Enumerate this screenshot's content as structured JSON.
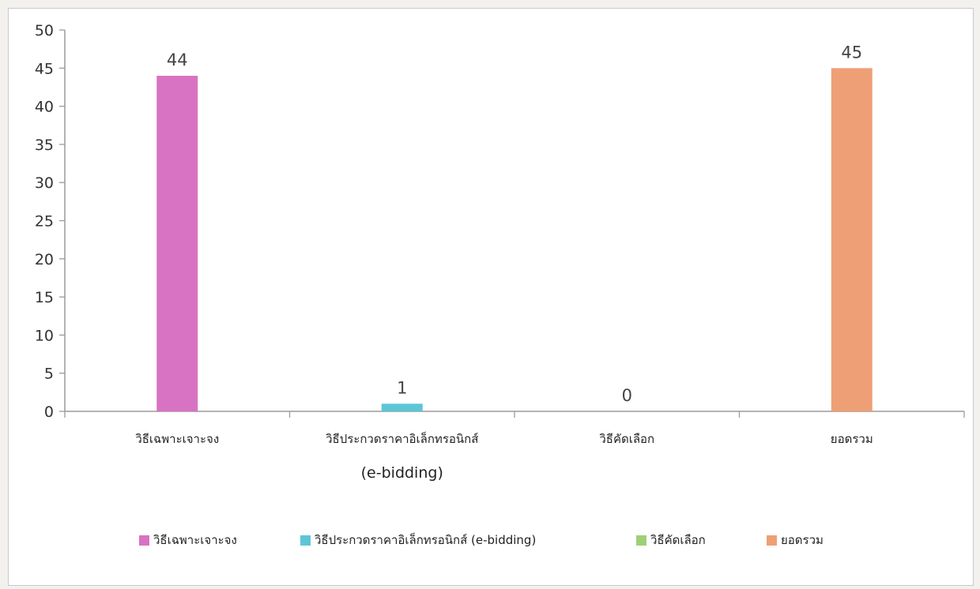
{
  "chart_data": {
    "type": "bar",
    "categories": [
      "วิธีเฉพาะเจาะจง",
      "วิธีประกวดราคาอิเล็กทรอนิกส์ (e-bidding)",
      "วิธีคัดเลือก",
      "ยอดรวม"
    ],
    "category_lines": [
      [
        "วิธีเฉพาะเจาะจง"
      ],
      [
        "วิธีประกวดราคาอิเล็กทรอนิกส์",
        "(e-bidding)"
      ],
      [
        "วิธีคัดเลือก"
      ],
      [
        "ยอดรวม"
      ]
    ],
    "values": [
      44,
      1,
      0,
      45
    ],
    "data_labels": [
      "44",
      "1",
      "0",
      "45"
    ],
    "colors": [
      "#d873c3",
      "#5cc6d7",
      "#9ed077",
      "#ef9f75"
    ],
    "ylim": [
      0,
      50
    ],
    "yticks": [
      0,
      5,
      10,
      15,
      20,
      25,
      30,
      35,
      40,
      45,
      50
    ],
    "legend": {
      "position": "bottom",
      "entries": [
        {
          "label": "วิธีเฉพาะเจาะจง",
          "color": "#d873c3"
        },
        {
          "label": "วิธีประกวดราคาอิเล็กทรอนิกส์ (e-bidding)",
          "color": "#5cc6d7"
        },
        {
          "label": "วิธีคัดเลือก",
          "color": "#9ed077"
        },
        {
          "label": "ยอดรวม",
          "color": "#ef9f75"
        }
      ]
    },
    "grid": false,
    "title": "",
    "xlabel": "",
    "ylabel": ""
  }
}
